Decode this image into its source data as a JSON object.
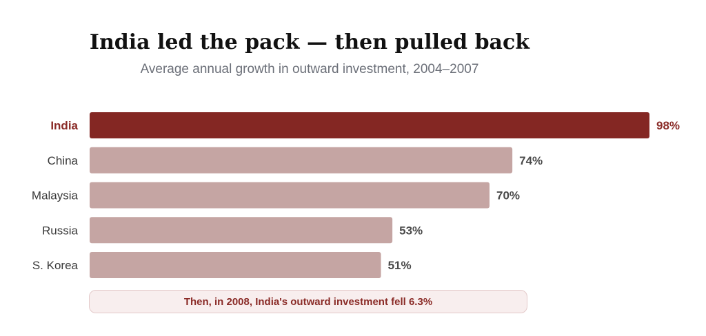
{
  "chart": {
    "title": "India led the pack — then pulled back",
    "subtitle": "Average annual growth in outward investment, 2004–2007",
    "note": "Then, in 2008, India's outward investment fell 6.3%"
  },
  "chart_data": {
    "type": "bar",
    "orientation": "horizontal",
    "title": "India led the pack — then pulled back",
    "subtitle": "Average annual growth in outward investment, 2004–2007",
    "categories": [
      "India",
      "China",
      "Malaysia",
      "Russia",
      "S. Korea"
    ],
    "values": [
      98,
      74,
      70,
      53,
      51
    ],
    "value_labels": [
      "98%",
      "74%",
      "70%",
      "53%",
      "51%"
    ],
    "unit": "%",
    "highlighted_category": "India",
    "xlim": [
      0,
      98
    ],
    "grid": false,
    "legend": "none",
    "annotation": "Then, in 2008, India's outward investment fell 6.3%"
  },
  "colors": {
    "highlight_bar": "#842723",
    "highlight_text": "#8a2b27",
    "other_bar": "#c5a5a3",
    "label_text": "#3a3a3a",
    "value_text": "#4a4a4a"
  }
}
